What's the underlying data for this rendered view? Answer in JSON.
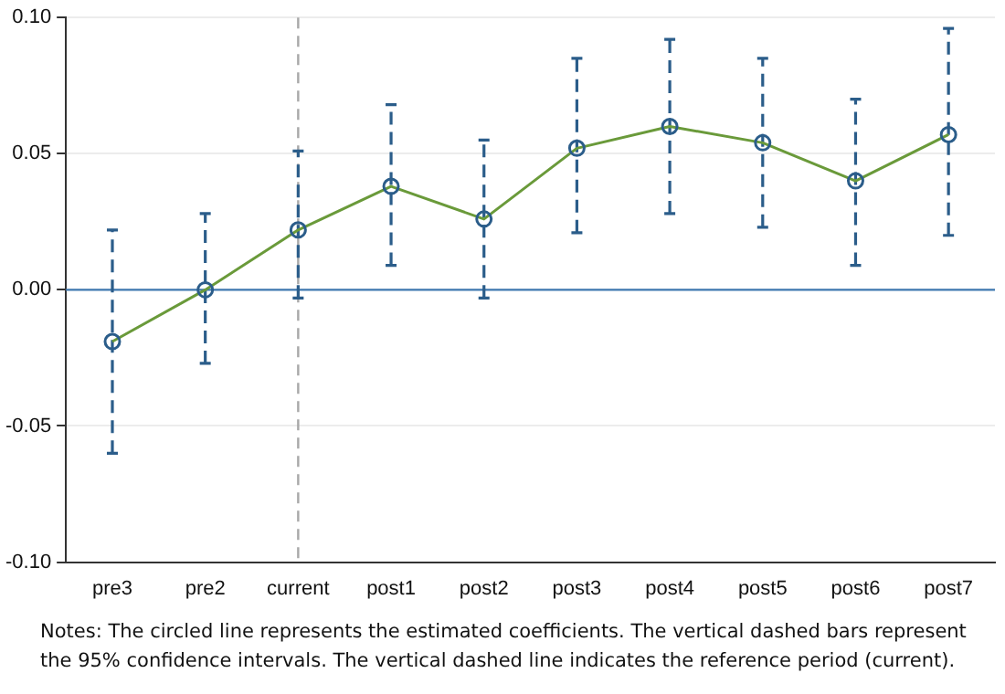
{
  "chart_data": {
    "type": "line",
    "categories": [
      "pre3",
      "pre2",
      "current",
      "post1",
      "post2",
      "post3",
      "post4",
      "post5",
      "post6",
      "post7"
    ],
    "series": [
      {
        "color": "#6a9a3a",
        "values": [
          -0.019,
          0.0,
          0.022,
          0.038,
          0.026,
          0.052,
          0.06,
          0.054,
          0.04,
          0.057
        ],
        "errors": [
          [
            -0.06,
            0.022
          ],
          [
            -0.027,
            0.028
          ],
          [
            -0.003,
            0.051
          ],
          [
            0.009,
            0.068
          ],
          [
            -0.003,
            0.055
          ],
          [
            0.021,
            0.085
          ],
          [
            0.028,
            0.092
          ],
          [
            0.023,
            0.085
          ],
          [
            0.009,
            0.07
          ],
          [
            0.02,
            0.096
          ]
        ]
      }
    ],
    "ylim": [
      -0.1,
      0.1
    ],
    "yticks": [
      {
        "value": -0.1,
        "label": "-0.10"
      },
      {
        "value": -0.05,
        "label": "-0.05"
      },
      {
        "value": 0,
        "label": "0.00"
      },
      {
        "value": 0.05,
        "label": "0.05"
      },
      {
        "value": 0.1,
        "label": "0.10"
      }
    ],
    "grid": "y",
    "marker": "circle",
    "line_style": "solid",
    "legend": false,
    "ref_lines": [
      {
        "axis": "y",
        "value": 0,
        "color": "#3f78b0",
        "line_style": "solid"
      },
      {
        "axis": "x",
        "value": "current",
        "color": "#a8a8a8",
        "line_style": "dashed"
      }
    ],
    "annotations": [
      "Notes: The circled line represents the estimated coefficients. The vertical dashed bars represent the 95% confidence intervals. The vertical dashed line indicates the reference period (current)."
    ]
  }
}
